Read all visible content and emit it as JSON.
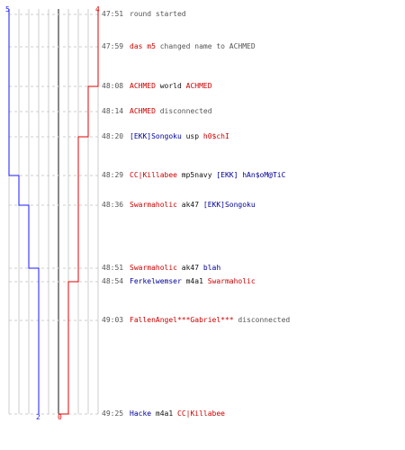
{
  "colors": {
    "team_blue": "#1a1aff",
    "team_red": "#e00000",
    "grid": "#cccccc",
    "center": "#888888",
    "time": "#555555"
  },
  "axis": {
    "top_left_score": "5",
    "top_right_score": "4",
    "bottom_blue_score": "2",
    "bottom_red_score": "0"
  },
  "events": [
    {
      "time": "47:51",
      "parts": [
        {
          "t": "round started",
          "c": "gray"
        }
      ]
    },
    {
      "time": "47:59",
      "parts": [
        {
          "t": "das m5",
          "c": "red"
        },
        {
          "t": " changed name to ACHMED",
          "c": "gray"
        }
      ]
    },
    {
      "time": "48:08",
      "parts": [
        {
          "t": "ACHMED",
          "c": "red"
        },
        {
          "t": " world ",
          "c": "black"
        },
        {
          "t": "ACHMED",
          "c": "red"
        }
      ]
    },
    {
      "time": "48:14",
      "parts": [
        {
          "t": "ACHMED",
          "c": "red"
        },
        {
          "t": " disconnected",
          "c": "gray"
        }
      ]
    },
    {
      "time": "48:20",
      "parts": [
        {
          "t": "[EKK]Songoku",
          "c": "blue"
        },
        {
          "t": " usp ",
          "c": "black"
        },
        {
          "t": "h0$chI",
          "c": "red"
        }
      ]
    },
    {
      "time": "48:29",
      "parts": [
        {
          "t": "CC|Killabee",
          "c": "red"
        },
        {
          "t": " mp5navy ",
          "c": "black"
        },
        {
          "t": "[EKK] hAn$oM@TiC",
          "c": "blue"
        }
      ]
    },
    {
      "time": "48:36",
      "parts": [
        {
          "t": "Swarmaholic",
          "c": "red"
        },
        {
          "t": " ak47 ",
          "c": "black"
        },
        {
          "t": "[EKK]Songoku",
          "c": "blue"
        }
      ]
    },
    {
      "time": "48:51",
      "parts": [
        {
          "t": "Swarmaholic",
          "c": "red"
        },
        {
          "t": " ak47 ",
          "c": "black"
        },
        {
          "t": "blah",
          "c": "blue"
        }
      ]
    },
    {
      "time": "48:54",
      "parts": [
        {
          "t": "Ferkelwemser",
          "c": "blue"
        },
        {
          "t": " m4a1 ",
          "c": "black"
        },
        {
          "t": "Swarmaholic",
          "c": "red"
        }
      ]
    },
    {
      "time": "49:03",
      "parts": [
        {
          "t": "FallenAngel***Gabriel***",
          "c": "red"
        },
        {
          "t": " disconnected",
          "c": "gray"
        }
      ]
    },
    {
      "time": "49:25",
      "parts": [
        {
          "t": "Hacke",
          "c": "blue"
        },
        {
          "t": " m4a1 ",
          "c": "black"
        },
        {
          "t": "CC|Killabee",
          "c": "red"
        }
      ]
    }
  ]
}
